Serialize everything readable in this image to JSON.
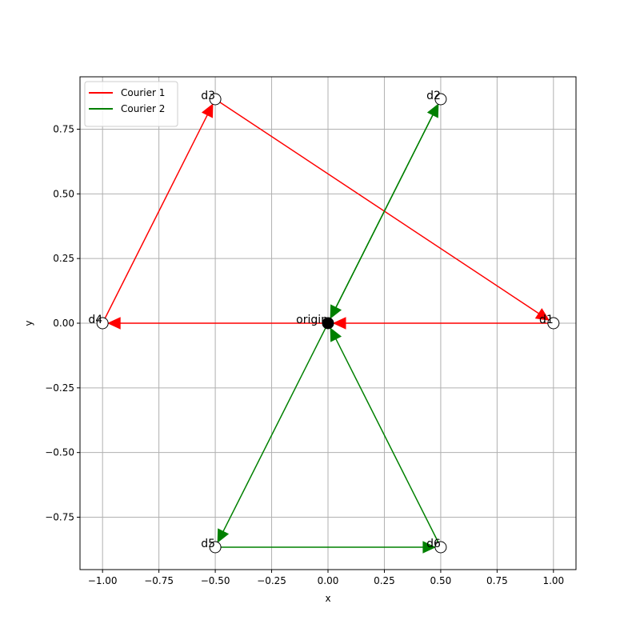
{
  "chart_data": {
    "type": "scatter",
    "title": "",
    "xlabel": "x",
    "ylabel": "y",
    "xlim": [
      -1.1,
      1.1
    ],
    "ylim": [
      -0.9526,
      0.9526
    ],
    "grid": true,
    "legend_position": "top-left",
    "x_ticks": [
      -1.0,
      -0.75,
      -0.5,
      -0.25,
      0.0,
      0.25,
      0.5,
      0.75,
      1.0
    ],
    "x_tick_labels": [
      "−1.00",
      "−0.75",
      "−0.50",
      "−0.25",
      "0.00",
      "0.25",
      "0.50",
      "0.75",
      "1.00"
    ],
    "y_ticks": [
      -0.75,
      -0.5,
      -0.25,
      0.0,
      0.25,
      0.5,
      0.75
    ],
    "y_tick_labels": [
      "−0.75",
      "−0.50",
      "−0.25",
      "0.00",
      "0.25",
      "0.50",
      "0.75"
    ],
    "nodes": [
      {
        "label": "origin",
        "x": 0.0,
        "y": 0.0,
        "color": "#000000"
      },
      {
        "label": "d1",
        "x": 1.0,
        "y": 0.0,
        "color": "#ffffff"
      },
      {
        "label": "d2",
        "x": 0.5,
        "y": 0.866,
        "color": "#ffffff"
      },
      {
        "label": "d3",
        "x": -0.5,
        "y": 0.866,
        "color": "#ffffff"
      },
      {
        "label": "d4",
        "x": -1.0,
        "y": 0.0,
        "color": "#ffffff"
      },
      {
        "label": "d5",
        "x": -0.5,
        "y": -0.866,
        "color": "#ffffff"
      },
      {
        "label": "d6",
        "x": 0.5,
        "y": -0.866,
        "color": "#ffffff"
      }
    ],
    "series": [
      {
        "name": "Courier 1",
        "color": "#ff0000",
        "route": [
          "d1",
          "origin",
          "d4",
          "d3",
          "d1"
        ]
      },
      {
        "name": "Courier 2",
        "color": "#008000",
        "route": [
          "d6",
          "origin",
          "d2",
          "origin",
          "d5",
          "d6"
        ]
      }
    ]
  }
}
